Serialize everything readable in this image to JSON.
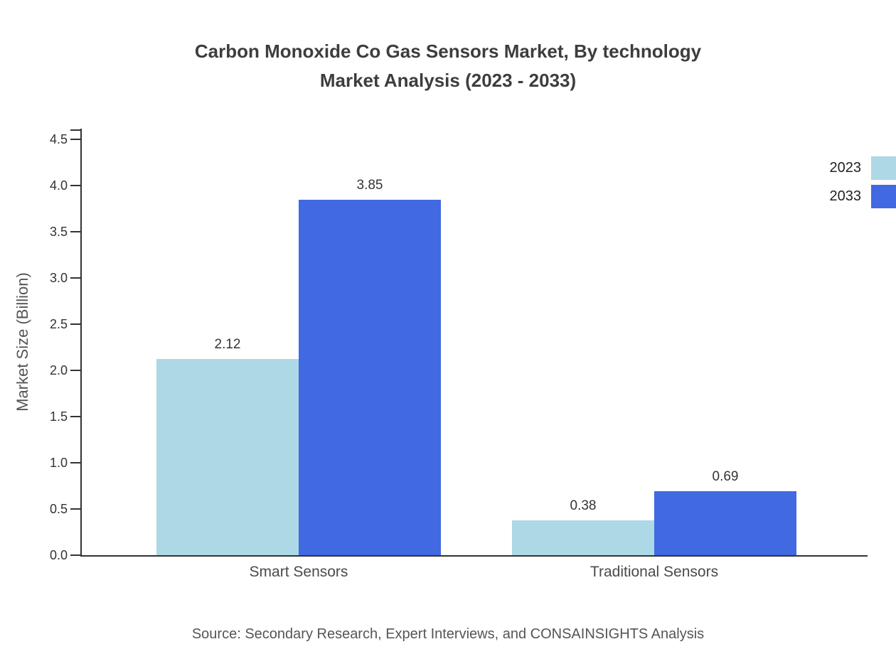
{
  "title": {
    "line1": "Carbon Monoxide Co Gas Sensors Market, By technology",
    "line2": "Market Analysis (2023 - 2033)"
  },
  "source": "Source: Secondary Research, Expert Interviews, and CONSAINSIGHTS Analysis",
  "chart_data": {
    "type": "bar",
    "title": "Carbon Monoxide Co Gas Sensors Market, By technology Market Analysis (2023 - 2033)",
    "categories": [
      "Smart Sensors",
      "Traditional Sensors"
    ],
    "series": [
      {
        "name": "2023",
        "color": "#ADD8E6",
        "values": [
          2.12,
          0.38
        ]
      },
      {
        "name": "2033",
        "color": "#4169E1",
        "values": [
          3.85,
          0.69
        ]
      }
    ],
    "xlabel": "",
    "ylabel": "Market Size (Billion)",
    "ylim": [
      0,
      4.5
    ],
    "ytick_step": 0.5,
    "grid": false,
    "legend_position": "top-right"
  }
}
